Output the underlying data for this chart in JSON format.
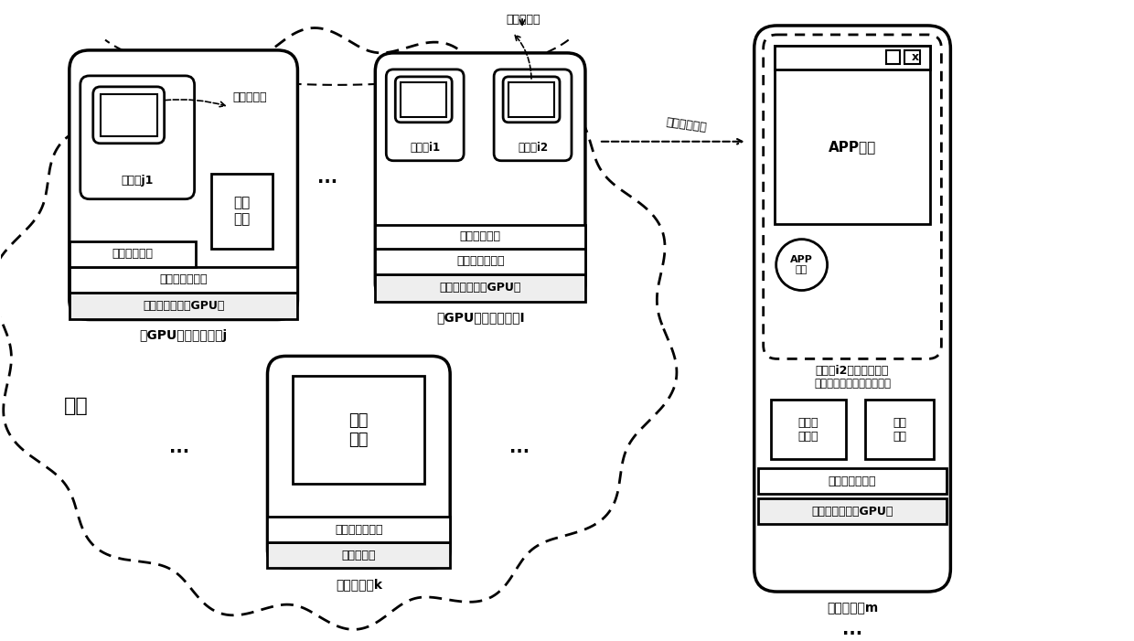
{
  "bg_color": "#ffffff",
  "labels": {
    "cloud_label": "云端",
    "server_j_label": "带GPU的计算服务器j",
    "server_i_label": "无GPU的计算服务器I",
    "server_k_label": "调度服务器k",
    "terminal_m_label": "终端计算机m",
    "redirect_module": "重定向模块",
    "redirect_module2": "重定向模块",
    "service_module": "服务\n模块",
    "vm_manager": "虚拟机管理器",
    "os_driver": "操作系统及驱动",
    "hardware_gpu": "硬件设备等（含GPU）",
    "hardware_nogpu": "硬件设备等（无GPU）",
    "hardware_k": "硬件设备等",
    "vm_j1": "虚拟机j1",
    "vm_i1": "虚拟机i1",
    "vm_i2": "虚拟机i2",
    "vm_manager_i": "虚拟机管理器",
    "os_driver_i": "操作系统及驱动",
    "schedule_module": "调度\n模块",
    "os_driver_k": "操作系统及驱动",
    "app_window": "APP窗口",
    "app_icon": "APP\n图标",
    "vm_i2_desktop": "虚拟机i2桌面（全屏）",
    "vm_i2_desktop2": "（通过远程连接软件连接）",
    "window_mgr": "窗口管\n理模块",
    "service_module2": "服务\n模块",
    "os_driver_m": "操作系统及驱动",
    "hardware_gpu_m": "硬件设备等（含GPU）",
    "remote_desktop": "远程桌面协议",
    "ellipsis": "...",
    "x_button": "x"
  }
}
